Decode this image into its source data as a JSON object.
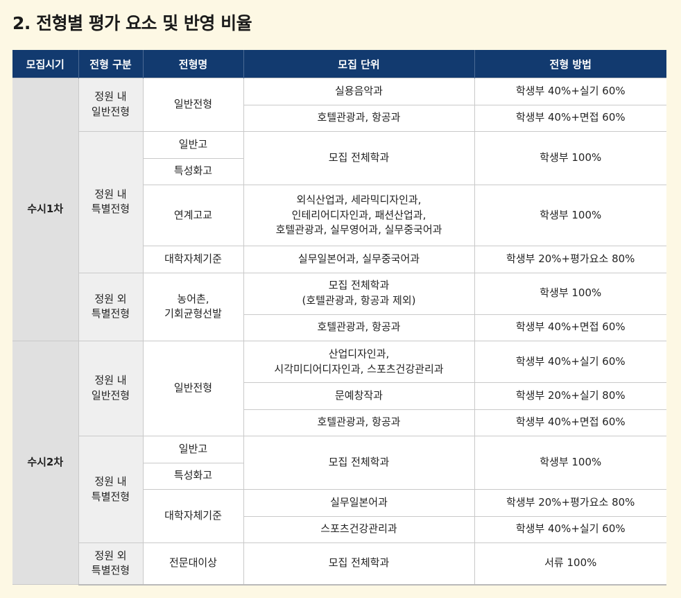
{
  "title": "2. 전형별 평가 요소 및 반영 비율",
  "headers": [
    "모집시기",
    "전형 구분",
    "전형명",
    "모집 단위",
    "전형 방법"
  ],
  "periods": {
    "s1": "수시1차",
    "s2": "수시2차"
  },
  "types": {
    "in_general": "정원 내\n일반전형",
    "in_special": "정원 내\n특별전형",
    "out_special": "정원 외\n특별전형"
  },
  "names": {
    "general": "일반전형",
    "ilban_go": "일반고",
    "teukseong": "특성화고",
    "yeongye": "연계고교",
    "jache": "대학자체기준",
    "nongeochon": "농어촌,\n기회균형선발",
    "jeonmun": "전문대이상"
  },
  "units": {
    "silyong": "실용음악과",
    "hotel": "호텔관광과, 항공과",
    "all": "모집 전체학과",
    "yeongye": "외식산업과, 세라믹디자인과,\n인테리어디자인과, 패션산업과,\n호텔관광과, 실무영어과, 실무중국어과",
    "ilbon_jungguk": "실무일본어과, 실무중국어과",
    "all_excl": "모집 전체학과\n(호텔관광과, 항공과 제외)",
    "sanup": "산업디자인과,\n시각미디어디자인과, 스포츠건강관리과",
    "munye": "문예창작과",
    "ilbon": "실무일본어과",
    "sports": "스포츠건강관리과"
  },
  "methods": {
    "m40_60": "학생부 40%+실기 60%",
    "m40_i60": "학생부 40%+면접 60%",
    "m100": "학생부 100%",
    "m20_e80": "학생부 20%+평가요소 80%",
    "m20_80": "학생부 20%+실기 80%",
    "doc100": "서류 100%"
  }
}
